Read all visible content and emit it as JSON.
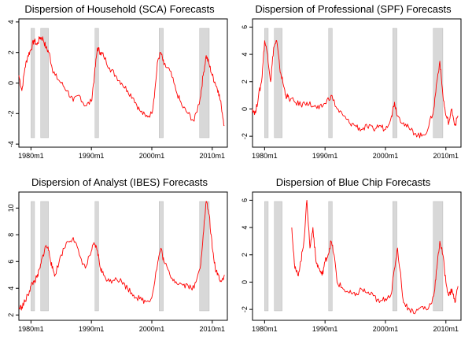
{
  "chart_data": [
    {
      "type": "line",
      "title": "Dispersion of Household (SCA) Forecasts",
      "xlabel": "",
      "ylabel": "",
      "xlim": [
        1978.0,
        2012.5
      ],
      "ylim": [
        -4.2,
        4.2
      ],
      "yticks": [
        -4,
        -2,
        0,
        2,
        4
      ],
      "xticks": [
        1980,
        1990,
        2000,
        2010
      ],
      "xtick_labels": [
        "1980m1",
        "1990m1",
        "2000m1",
        "2010m1"
      ],
      "recessions": [
        [
          1980.0,
          1980.6
        ],
        [
          1981.6,
          1982.9
        ],
        [
          1990.6,
          1991.2
        ],
        [
          2001.2,
          2001.9
        ],
        [
          2007.9,
          2009.5
        ]
      ],
      "color": "#ff0000",
      "series": [
        {
          "x": [
            1978.0,
            1978.5,
            1979.0,
            1979.5,
            1980.0,
            1980.5,
            1981.0,
            1981.5,
            1982.0,
            1982.5,
            1983.0,
            1983.5,
            1984.0,
            1985.0,
            1986.0,
            1987.0,
            1988.0,
            1989.0,
            1990.0,
            1990.5,
            1991.0,
            1991.5,
            1992.0,
            1993.0,
            1994.0,
            1995.0,
            1996.0,
            1997.0,
            1998.0,
            1999.0,
            2000.0,
            2000.5,
            2001.0,
            2001.5,
            2002.0,
            2003.0,
            2004.0,
            2005.0,
            2006.0,
            2007.0,
            2008.0,
            2008.5,
            2009.0,
            2009.5,
            2010.0,
            2010.5,
            2011.0,
            2011.5,
            2012.0
          ],
          "y": [
            0.5,
            -0.5,
            1.0,
            1.8,
            2.2,
            2.8,
            2.5,
            3.0,
            2.9,
            2.3,
            2.0,
            1.0,
            0.5,
            0.0,
            -0.5,
            -1.2,
            -0.8,
            -1.5,
            -1.2,
            0.5,
            2.3,
            2.0,
            1.8,
            1.0,
            0.5,
            0.0,
            -0.5,
            -1.0,
            -1.8,
            -2.2,
            -2.0,
            -0.5,
            1.5,
            2.0,
            1.2,
            0.8,
            -0.5,
            -1.5,
            -2.0,
            -2.5,
            -1.0,
            0.5,
            1.8,
            1.2,
            0.5,
            0.0,
            -0.5,
            -1.5,
            -2.8
          ]
        }
      ]
    },
    {
      "type": "line",
      "title": "Dispersion of Professional (SPF) Forecasts",
      "xlabel": "",
      "ylabel": "",
      "xlim": [
        1978.0,
        2012.5
      ],
      "ylim": [
        -2.8,
        6.6
      ],
      "yticks": [
        -2,
        0,
        2,
        4,
        6
      ],
      "xticks": [
        1980,
        1990,
        2000,
        2010
      ],
      "xtick_labels": [
        "1980m1",
        "1990m1",
        "2000m1",
        "2010m1"
      ],
      "recessions": [
        [
          1980.0,
          1980.6
        ],
        [
          1981.6,
          1982.9
        ],
        [
          1990.6,
          1991.2
        ],
        [
          2001.2,
          2001.9
        ],
        [
          2007.9,
          2009.5
        ]
      ],
      "color": "#ff0000",
      "series": [
        {
          "x": [
            1978.0,
            1978.5,
            1979.0,
            1979.5,
            1980.0,
            1980.5,
            1981.0,
            1981.5,
            1982.0,
            1982.5,
            1983.0,
            1983.5,
            1984.0,
            1985.0,
            1986.0,
            1987.0,
            1988.0,
            1989.0,
            1990.0,
            1991.0,
            1992.0,
            1993.0,
            1994.0,
            1995.0,
            1996.0,
            1997.0,
            1998.0,
            1999.0,
            2000.0,
            2001.0,
            2001.5,
            2002.0,
            2003.0,
            2004.0,
            2005.0,
            2006.0,
            2007.0,
            2008.0,
            2008.5,
            2009.0,
            2009.5,
            2010.0,
            2010.5,
            2011.0,
            2011.5,
            2012.0
          ],
          "y": [
            0.0,
            -0.3,
            1.0,
            2.0,
            5.0,
            4.0,
            2.0,
            4.5,
            5.0,
            3.0,
            2.0,
            1.0,
            0.8,
            0.5,
            0.3,
            0.5,
            0.2,
            0.0,
            0.4,
            1.0,
            0.0,
            -0.5,
            -1.0,
            -1.2,
            -1.5,
            -1.3,
            -1.5,
            -1.2,
            -1.5,
            -0.5,
            0.5,
            -0.5,
            -1.0,
            -1.5,
            -1.8,
            -2.0,
            -1.5,
            0.0,
            2.0,
            3.5,
            1.0,
            -0.5,
            -1.0,
            0.0,
            -1.2,
            -0.5
          ]
        }
      ]
    },
    {
      "type": "line",
      "title": "Dispersion of Analyst (IBES) Forecasts",
      "xlabel": "",
      "ylabel": "",
      "xlim": [
        1978.0,
        2012.5
      ],
      "ylim": [
        1.6,
        11.2
      ],
      "yticks": [
        2,
        4,
        6,
        8,
        10
      ],
      "xticks": [
        1980,
        1990,
        2000,
        2010
      ],
      "xtick_labels": [
        "1980m1",
        "1990m1",
        "2000m1",
        "2010m1"
      ],
      "recessions": [
        [
          1980.0,
          1980.6
        ],
        [
          1981.6,
          1982.9
        ],
        [
          1990.6,
          1991.2
        ],
        [
          2001.2,
          2001.9
        ],
        [
          2007.9,
          2009.5
        ]
      ],
      "color": "#ff0000",
      "series": [
        {
          "x": [
            1978.0,
            1978.5,
            1979.0,
            1979.5,
            1980.0,
            1980.5,
            1981.0,
            1981.5,
            1982.0,
            1982.5,
            1983.0,
            1983.5,
            1984.0,
            1985.0,
            1986.0,
            1987.0,
            1988.0,
            1989.0,
            1990.0,
            1990.5,
            1991.0,
            1991.5,
            1992.0,
            1993.0,
            1994.0,
            1995.0,
            1996.0,
            1997.0,
            1998.0,
            1999.0,
            2000.0,
            2001.0,
            2001.5,
            2002.0,
            2003.0,
            2004.0,
            2005.0,
            2006.0,
            2007.0,
            2008.0,
            2008.5,
            2009.0,
            2009.5,
            2010.0,
            2010.5,
            2011.0,
            2011.5,
            2012.0
          ],
          "y": [
            2.5,
            2.6,
            3.0,
            3.5,
            4.2,
            4.5,
            4.8,
            5.5,
            6.5,
            7.2,
            6.8,
            5.5,
            5.0,
            6.5,
            7.5,
            7.8,
            6.5,
            5.5,
            6.8,
            7.3,
            6.8,
            5.5,
            5.0,
            4.5,
            4.8,
            4.5,
            4.0,
            3.5,
            3.2,
            3.0,
            3.3,
            6.0,
            7.0,
            6.0,
            5.0,
            4.5,
            4.3,
            4.2,
            4.0,
            5.5,
            8.0,
            10.5,
            9.5,
            7.0,
            5.5,
            5.0,
            4.5,
            5.0
          ]
        }
      ]
    },
    {
      "type": "line",
      "title": "Dispersion of Blue Chip Forecasts",
      "xlabel": "",
      "ylabel": "",
      "xlim": [
        1978.0,
        2012.5
      ],
      "ylim": [
        -2.8,
        6.6
      ],
      "yticks": [
        -2,
        0,
        2,
        4,
        6
      ],
      "xticks": [
        1980,
        1990,
        2000,
        2010
      ],
      "xtick_labels": [
        "1980m1",
        "1990m1",
        "2000m1",
        "2010m1"
      ],
      "recessions": [
        [
          1980.0,
          1980.6
        ],
        [
          1981.6,
          1982.9
        ],
        [
          1990.6,
          1991.2
        ],
        [
          2001.2,
          2001.9
        ],
        [
          2007.9,
          2009.5
        ]
      ],
      "color": "#ff0000",
      "series": [
        {
          "x": [
            1984.5,
            1985.0,
            1985.5,
            1986.0,
            1986.5,
            1987.0,
            1987.5,
            1988.0,
            1988.5,
            1989.0,
            1989.5,
            1990.0,
            1990.5,
            1991.0,
            1991.5,
            1992.0,
            1993.0,
            1994.0,
            1995.0,
            1996.0,
            1997.0,
            1998.0,
            1999.0,
            2000.0,
            2001.0,
            2001.5,
            2002.0,
            2003.0,
            2004.0,
            2005.0,
            2006.0,
            2007.0,
            2008.0,
            2008.5,
            2009.0,
            2009.5,
            2010.0,
            2010.5,
            2011.0,
            2011.5,
            2012.0
          ],
          "y": [
            4.0,
            1.0,
            0.5,
            1.5,
            3.0,
            6.0,
            2.5,
            4.0,
            1.5,
            1.0,
            0.5,
            1.5,
            2.0,
            3.0,
            2.0,
            0.0,
            -0.5,
            -0.8,
            -1.0,
            -0.5,
            -0.8,
            -1.0,
            -1.5,
            -1.2,
            -0.8,
            1.0,
            2.5,
            -1.5,
            -2.0,
            -2.2,
            -1.8,
            -2.0,
            -1.0,
            1.0,
            3.0,
            2.0,
            0.0,
            -1.0,
            -0.5,
            -1.5,
            -0.3
          ]
        }
      ]
    }
  ]
}
